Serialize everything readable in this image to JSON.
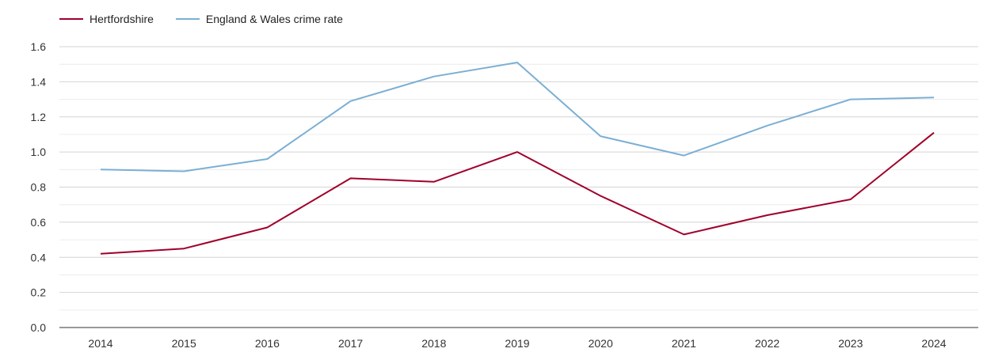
{
  "chart_data": {
    "type": "line",
    "x": [
      "2014",
      "2015",
      "2016",
      "2017",
      "2018",
      "2019",
      "2020",
      "2021",
      "2022",
      "2023",
      "2024"
    ],
    "series": [
      {
        "name": "Hertfordshire",
        "color": "#a0002a",
        "values": [
          0.42,
          0.45,
          0.57,
          0.85,
          0.83,
          1.0,
          0.75,
          0.53,
          0.64,
          0.73,
          1.11
        ]
      },
      {
        "name": "England & Wales crime rate",
        "color": "#7bafd4",
        "values": [
          0.9,
          0.89,
          0.96,
          1.29,
          1.43,
          1.51,
          1.09,
          0.98,
          1.15,
          1.3,
          1.31
        ]
      }
    ],
    "yticks": [
      "0.0",
      "0.2",
      "0.4",
      "0.6",
      "0.8",
      "1.0",
      "1.2",
      "1.4",
      "1.6"
    ],
    "ylim": [
      0,
      1.6
    ],
    "grid": true,
    "legend_position": "top-left"
  }
}
